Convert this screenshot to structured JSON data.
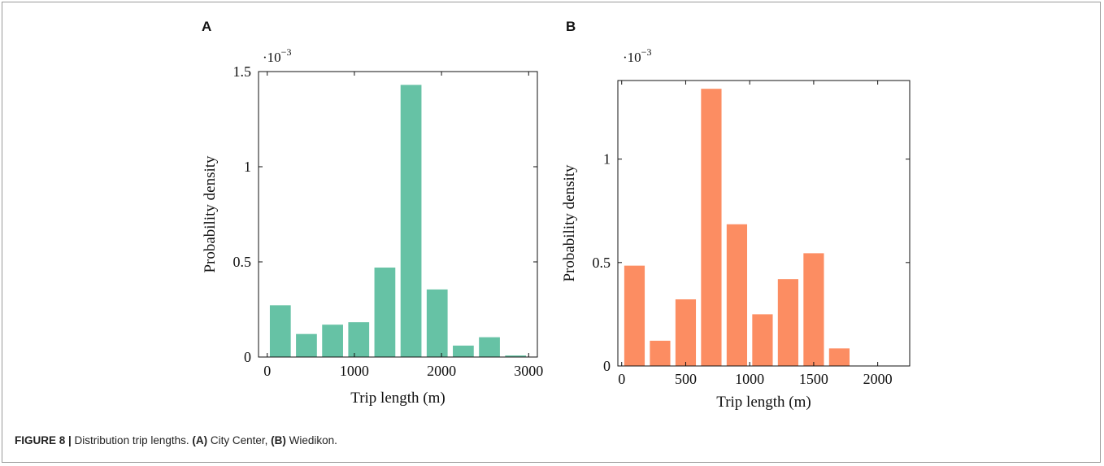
{
  "chart_data": [
    {
      "panel": "A",
      "type": "bar",
      "color": "#66c2a5",
      "x_centers": [
        150,
        450,
        750,
        1050,
        1350,
        1650,
        1950,
        2250,
        2550,
        2850
      ],
      "values": [
        0.000272,
        0.000121,
        0.00017,
        0.000183,
        0.00047,
        0.00143,
        0.000355,
        6e-05,
        0.000104,
        8e-06
      ],
      "xlabel": "Trip length (m)",
      "ylabel": "Probability density",
      "scale_label_base": "·10",
      "scale_label_exp": "−3",
      "xlim": [
        -100,
        3100
      ],
      "ylim": [
        0,
        0.0015
      ],
      "xticks": [
        0,
        1000,
        2000,
        3000
      ],
      "yticks": [
        0,
        0.0005,
        0.001,
        0.0015
      ],
      "ytick_labels": [
        "0",
        "0.5",
        "1",
        "1.5"
      ]
    },
    {
      "panel": "B",
      "type": "bar",
      "color": "#fc8d62",
      "x_centers": [
        100,
        300,
        500,
        700,
        900,
        1100,
        1300,
        1500,
        1700,
        1900
      ],
      "values": [
        0.000485,
        0.000122,
        0.000322,
        0.00134,
        0.000685,
        0.00025,
        0.00042,
        0.000545,
        8.5e-05,
        0.0
      ],
      "xlabel": "Trip length (m)",
      "ylabel": "Probability density",
      "scale_label_base": "·10",
      "scale_label_exp": "−3",
      "xlim": [
        -30,
        2250
      ],
      "ylim": [
        0,
        0.00138
      ],
      "xticks": [
        0,
        500,
        1000,
        1500,
        2000
      ],
      "yticks": [
        0,
        0.0005,
        0.001
      ],
      "ytick_labels": [
        "0",
        "0.5",
        "1"
      ]
    }
  ],
  "caption": {
    "label": "FIGURE 8 |",
    "text": " Distribution trip lengths. ",
    "a_label": "(A)",
    "a_text": " City Center, ",
    "b_label": "(B)",
    "b_text": " Wiedikon."
  }
}
